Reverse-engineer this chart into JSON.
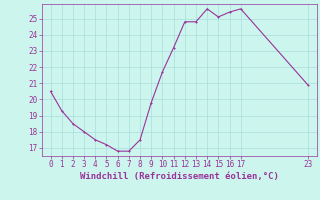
{
  "x": [
    0,
    1,
    2,
    3,
    4,
    5,
    6,
    7,
    8,
    9,
    10,
    11,
    12,
    13,
    14,
    15,
    16,
    17,
    23
  ],
  "y": [
    20.5,
    19.3,
    18.5,
    18.0,
    17.5,
    17.2,
    16.8,
    16.8,
    17.5,
    19.8,
    21.7,
    23.2,
    24.8,
    24.8,
    25.6,
    25.1,
    25.4,
    25.6,
    20.9
  ],
  "line_color": "#993399",
  "marker_color": "#993399",
  "bg_color": "#ccf5ee",
  "grid_color": "#aadddd",
  "xlabel": "Windchill (Refroidissement éolien,°C)",
  "xlabel_color": "#993399",
  "tick_color": "#993399",
  "ylim_min": 16.5,
  "ylim_max": 25.9,
  "yticks": [
    17,
    18,
    19,
    20,
    21,
    22,
    23,
    24,
    25
  ],
  "xticks": [
    0,
    1,
    2,
    3,
    4,
    5,
    6,
    7,
    8,
    9,
    10,
    11,
    12,
    13,
    14,
    15,
    16,
    17,
    23
  ],
  "xlim_min": -0.8,
  "xlim_max": 23.8,
  "axis_fontsize": 5.5,
  "label_fontsize": 6.5,
  "linewidth": 0.8,
  "markersize": 2.0
}
